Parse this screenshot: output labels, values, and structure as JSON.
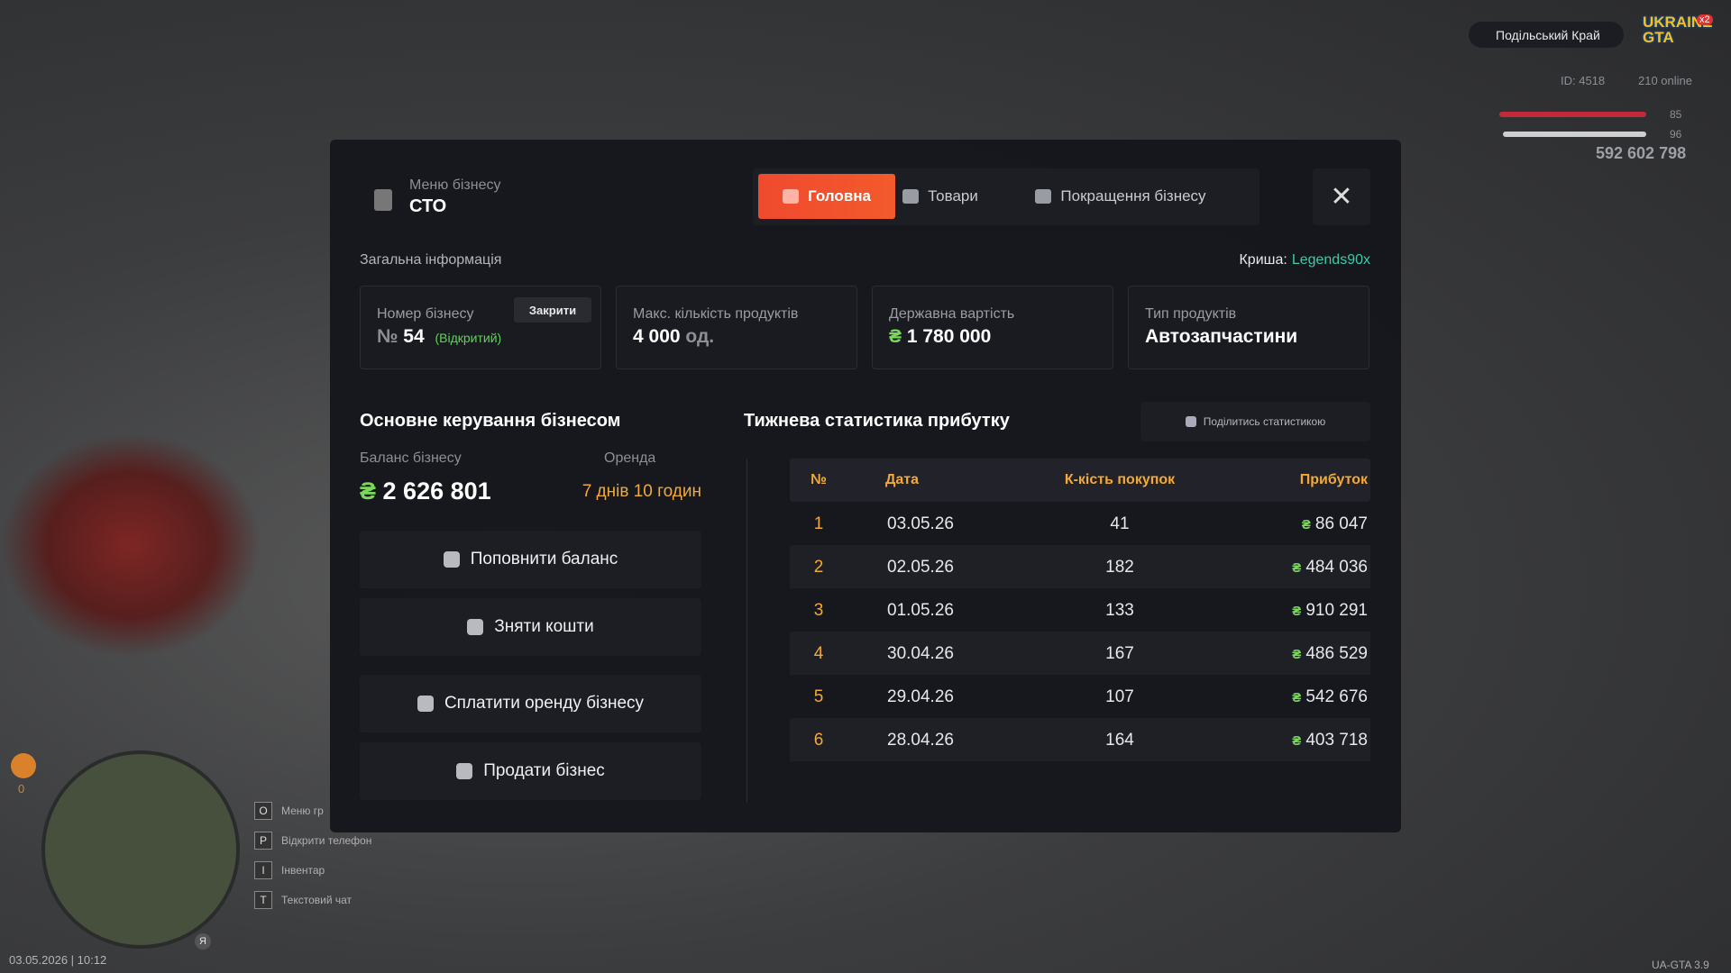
{
  "hud": {
    "server": "Подільський Край",
    "logo": "UKRAINE GTA",
    "badge": "x2",
    "id": "ID: 4518",
    "online": "210 online",
    "health": "85",
    "armor": "96",
    "money": "592 602 798",
    "counter": "0",
    "mic": "Я",
    "datetime": "03.05.2026 | 10:12",
    "version": "UA-GTA 3.9",
    "hints": [
      {
        "key": "O",
        "label": "Меню гр"
      },
      {
        "key": "P",
        "label": "Відкрити телефон"
      },
      {
        "key": "I",
        "label": "Інвентар"
      },
      {
        "key": "T",
        "label": "Текстовий чат"
      }
    ]
  },
  "modal": {
    "header_label": "Меню бізнесу",
    "business": "СТО",
    "tabs": [
      "Головна",
      "Товари",
      "Покращення бізнесу"
    ],
    "section_title": "Загальна інформація",
    "roof_label": "Криша:",
    "roof_value": "Legends90x",
    "currency": "₴",
    "card1": {
      "label": "Номер бізнесу",
      "button": "Закрити",
      "prefix": "№",
      "value": "54",
      "status": "(Відкритий)"
    },
    "card2": {
      "label": "Макс. кількість продуктів",
      "value": "4 000",
      "unit": "од."
    },
    "card3": {
      "label": "Державна вартість",
      "value": "1 780 000"
    },
    "card4": {
      "label": "Тип продуктів",
      "value": "Автозапчастини"
    },
    "control_title": "Основне керування бізнесом",
    "balance_label": "Баланс бізнесу",
    "balance_value": "2 626 801",
    "rent_label": "Оренда",
    "rent_value": "7 днів 10 годин",
    "buttons": [
      "Поповнити баланс",
      "Зняти кошти",
      "Сплатити оренду бізнесу",
      "Продати бізнес"
    ],
    "stats_title": "Тижнева статистика прибутку",
    "share": "Поділитись статистикою",
    "table": {
      "columns": [
        "№",
        "Дата",
        "К-кість покупок",
        "Прибуток"
      ],
      "rows": [
        [
          1,
          "03.05.26",
          41,
          "86 047"
        ],
        [
          2,
          "02.05.26",
          182,
          "484 036"
        ],
        [
          3,
          "01.05.26",
          133,
          "910 291"
        ],
        [
          4,
          "30.04.26",
          167,
          "486 529"
        ],
        [
          5,
          "29.04.26",
          107,
          "542 676"
        ],
        [
          6,
          "28.04.26",
          164,
          "403 718"
        ]
      ]
    }
  }
}
